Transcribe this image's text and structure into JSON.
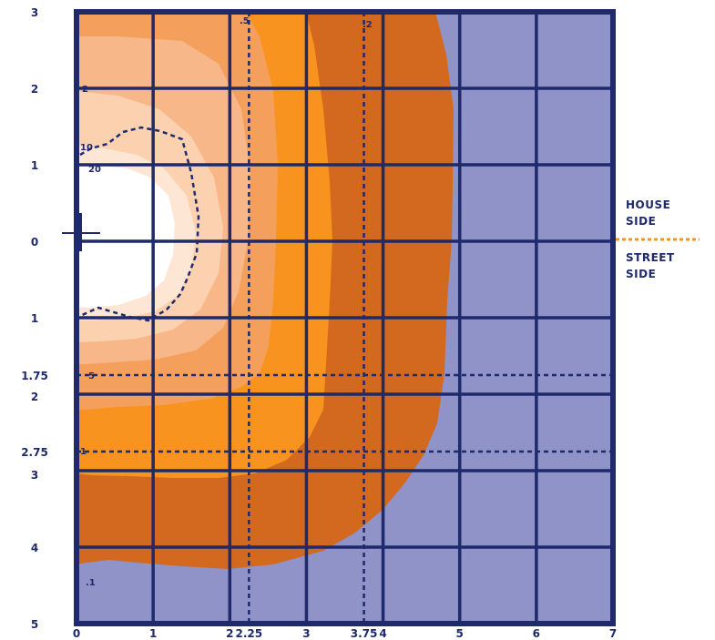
{
  "chart_data": {
    "type": "heatmap",
    "title": "",
    "xlabel": "",
    "ylabel": "",
    "xlim": [
      0,
      7
    ],
    "ylim_top": [
      0,
      3
    ],
    "ylim_bottom": [
      0,
      5
    ],
    "grid": true,
    "x_ticks": [
      "0",
      "1",
      "2",
      "2.25",
      "3",
      "3.75",
      "4",
      "5",
      "6",
      "7"
    ],
    "y_ticks_top": [
      "3",
      "2",
      "1",
      "0"
    ],
    "y_ticks_bottom": [
      "1",
      "1.75",
      "2",
      "2.75",
      "3",
      "4",
      "5"
    ],
    "reference_lines": {
      "vertical": [
        2.25,
        3.75
      ],
      "horizontal_street": [
        1.75,
        2.75
      ]
    },
    "contour_labels": [
      ".5",
      ".2",
      "2",
      "10",
      "20",
      "5",
      "1",
      ".1"
    ],
    "colors": {
      "background": "#8f93c8",
      "band_dark": "#d2691e",
      "band_orange": "#f7931e",
      "band_mid": "#f4a05c",
      "band_light": "#f8b788",
      "band_pale": "#fbd1b0",
      "band_palest": "#fde6d4",
      "center": "#ffffff",
      "grid": "#1e2a6b",
      "marker_line": "#f7931e"
    },
    "legend": {
      "house_label": "HOUSE SIDE",
      "street_label": "STREET SIDE"
    }
  }
}
